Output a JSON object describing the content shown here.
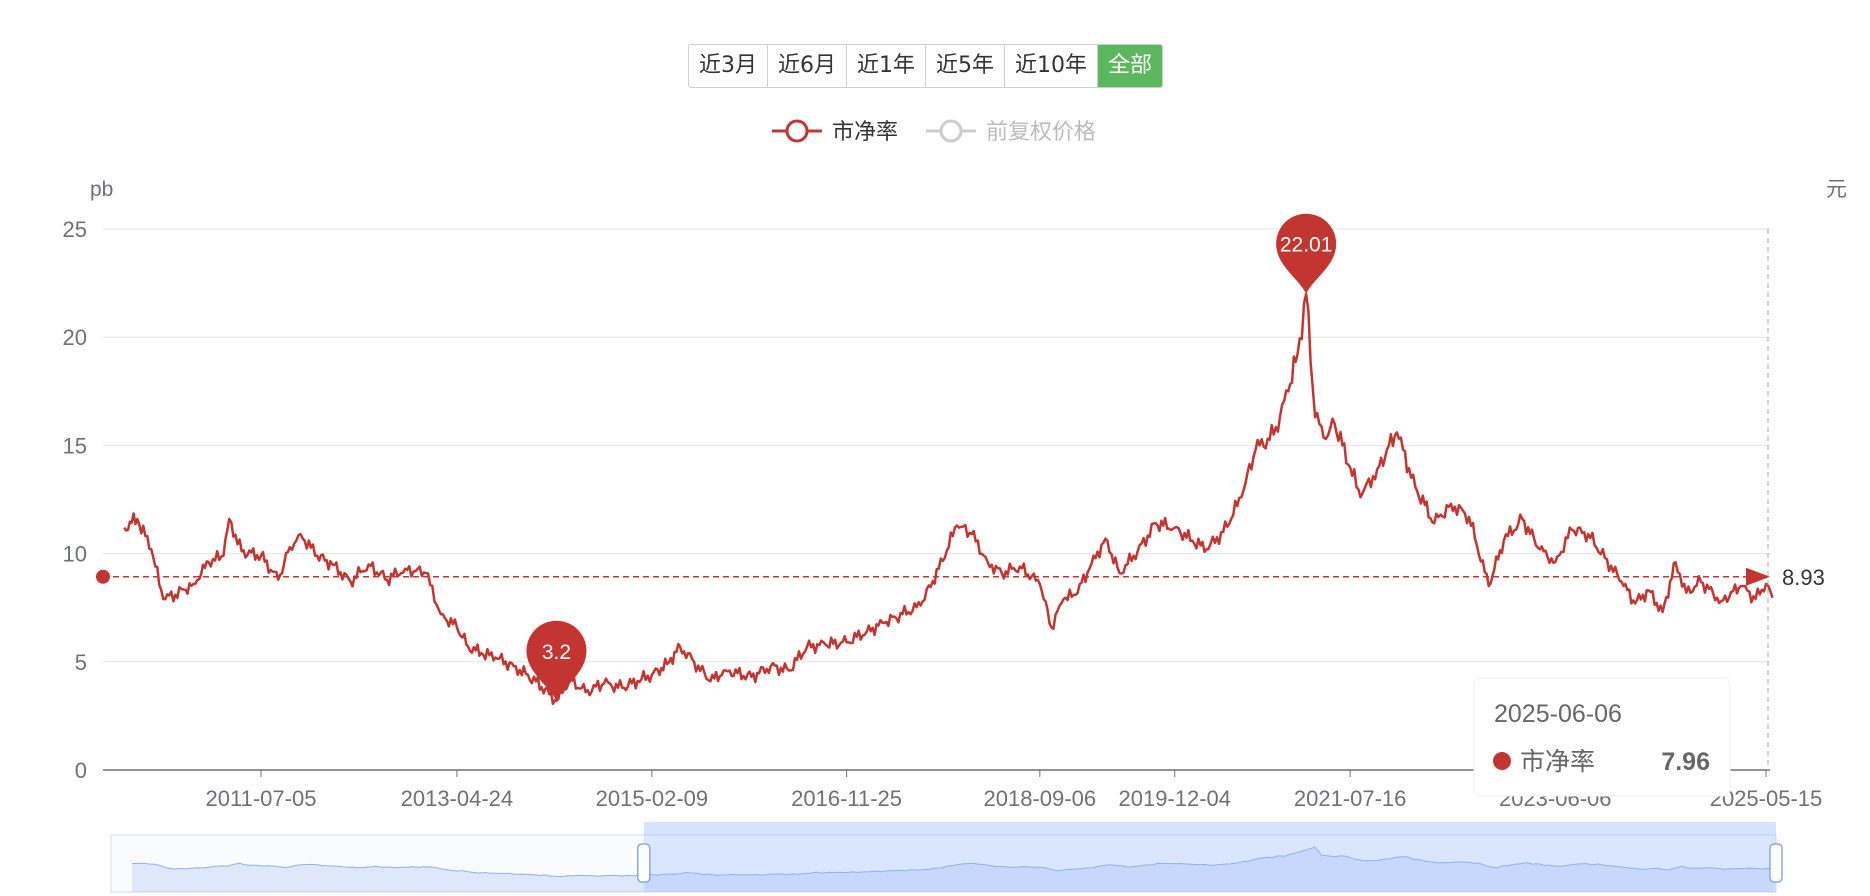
{
  "range_buttons": [
    {
      "label": "近3月",
      "active": false
    },
    {
      "label": "近6月",
      "active": false
    },
    {
      "label": "近1年",
      "active": false
    },
    {
      "label": "近5年",
      "active": false
    },
    {
      "label": "近10年",
      "active": false
    },
    {
      "label": "全部",
      "active": true
    }
  ],
  "colors": {
    "pb": "#c23531",
    "price": "#cccccc",
    "accent": "#5cb85c",
    "grid": "#e0e3ea",
    "axis": "#6e7079",
    "zoom": "#8fb0f7"
  },
  "chart_data": {
    "type": "line",
    "left_unit": "pb",
    "right_unit": "元",
    "ylim": [
      0,
      25
    ],
    "yticks": [
      0,
      5,
      10,
      15,
      20,
      25
    ],
    "xticks": [
      "2011-07-05",
      "2013-04-24",
      "2015-02-09",
      "2016-11-25",
      "2018-09-06",
      "2019-12-04",
      "2021-07-16",
      "2023-06-06",
      "2025-05-15"
    ],
    "legend": [
      {
        "name": "市净率",
        "active": true
      },
      {
        "name": "前复权价格",
        "active": false
      }
    ],
    "series": [
      {
        "name": "市净率",
        "points": [
          [
            "2010-04-01",
            11.2
          ],
          [
            "2010-05-15",
            11.6
          ],
          [
            "2010-07-01",
            10.2
          ],
          [
            "2010-08-10",
            7.9
          ],
          [
            "2010-09-20",
            8.1
          ],
          [
            "2010-11-20",
            8.6
          ],
          [
            "2011-01-10",
            9.6
          ],
          [
            "2011-03-01",
            9.9
          ],
          [
            "2011-03-20",
            11.6
          ],
          [
            "2011-05-01",
            10.1
          ],
          [
            "2011-07-05",
            9.9
          ],
          [
            "2011-09-01",
            8.8
          ],
          [
            "2011-10-10",
            10.3
          ],
          [
            "2011-11-15",
            10.9
          ],
          [
            "2012-01-10",
            9.9
          ],
          [
            "2012-03-01",
            9.5
          ],
          [
            "2012-05-01",
            8.7
          ],
          [
            "2012-07-01",
            9.5
          ],
          [
            "2012-09-01",
            8.8
          ],
          [
            "2012-11-01",
            9.3
          ],
          [
            "2013-01-10",
            9.1
          ],
          [
            "2013-03-01",
            7.2
          ],
          [
            "2013-04-24",
            6.6
          ],
          [
            "2013-06-01",
            5.7
          ],
          [
            "2013-07-15",
            5.4
          ],
          [
            "2013-09-01",
            5.2
          ],
          [
            "2013-11-01",
            4.8
          ],
          [
            "2014-01-15",
            4.1
          ],
          [
            "2014-03-01",
            3.5
          ],
          [
            "2014-03-25",
            3.2
          ],
          [
            "2014-05-10",
            4.2
          ],
          [
            "2014-07-01",
            3.6
          ],
          [
            "2014-09-01",
            4.0
          ],
          [
            "2014-11-01",
            3.8
          ],
          [
            "2015-01-05",
            4.2
          ],
          [
            "2015-02-09",
            4.4
          ],
          [
            "2015-04-01",
            4.9
          ],
          [
            "2015-05-15",
            5.7
          ],
          [
            "2015-07-01",
            5.0
          ],
          [
            "2015-08-25",
            4.1
          ],
          [
            "2015-10-15",
            4.6
          ],
          [
            "2016-01-10",
            4.3
          ],
          [
            "2016-03-15",
            4.8
          ],
          [
            "2016-05-15",
            4.6
          ],
          [
            "2016-07-15",
            5.7
          ],
          [
            "2016-09-15",
            5.8
          ],
          [
            "2016-11-25",
            5.9
          ],
          [
            "2017-02-01",
            6.4
          ],
          [
            "2017-04-01",
            6.8
          ],
          [
            "2017-06-01",
            7.2
          ],
          [
            "2017-08-01",
            7.6
          ],
          [
            "2017-10-01",
            9.3
          ],
          [
            "2017-12-01",
            11.3
          ],
          [
            "2018-01-20",
            10.9
          ],
          [
            "2018-03-15",
            9.6
          ],
          [
            "2018-05-01",
            9.1
          ],
          [
            "2018-07-01",
            9.4
          ],
          [
            "2018-09-06",
            8.6
          ],
          [
            "2018-10-15",
            6.6
          ],
          [
            "2018-11-25",
            7.9
          ],
          [
            "2019-01-05",
            8.1
          ],
          [
            "2019-02-20",
            9.3
          ],
          [
            "2019-04-15",
            10.7
          ],
          [
            "2019-06-01",
            9.1
          ],
          [
            "2019-08-01",
            10.1
          ],
          [
            "2019-10-01",
            11.4
          ],
          [
            "2019-12-04",
            11.2
          ],
          [
            "2020-02-01",
            10.6
          ],
          [
            "2020-03-20",
            10.2
          ],
          [
            "2020-05-15",
            11.0
          ],
          [
            "2020-07-15",
            12.6
          ],
          [
            "2020-09-01",
            14.8
          ],
          [
            "2020-11-01",
            15.5
          ],
          [
            "2020-12-20",
            17.5
          ],
          [
            "2021-01-20",
            19.2
          ],
          [
            "2021-02-18",
            22.0
          ],
          [
            "2021-03-20",
            16.3
          ],
          [
            "2021-04-25",
            15.3
          ],
          [
            "2021-05-25",
            16.0
          ],
          [
            "2021-07-16",
            14.0
          ],
          [
            "2021-08-20",
            12.6
          ],
          [
            "2021-10-15",
            13.9
          ],
          [
            "2021-12-20",
            15.6
          ],
          [
            "2022-02-20",
            13.1
          ],
          [
            "2022-04-25",
            11.4
          ],
          [
            "2022-06-20",
            12.3
          ],
          [
            "2022-08-20",
            11.7
          ],
          [
            "2022-10-25",
            8.5
          ],
          [
            "2022-12-15",
            10.6
          ],
          [
            "2023-02-15",
            11.6
          ],
          [
            "2023-04-15",
            10.2
          ],
          [
            "2023-06-06",
            9.6
          ],
          [
            "2023-08-01",
            11.1
          ],
          [
            "2023-09-25",
            10.9
          ],
          [
            "2023-11-20",
            9.8
          ],
          [
            "2024-01-15",
            8.7
          ],
          [
            "2024-03-01",
            7.7
          ],
          [
            "2024-04-15",
            8.3
          ],
          [
            "2024-06-01",
            7.3
          ],
          [
            "2024-07-15",
            9.6
          ],
          [
            "2024-08-20",
            8.2
          ],
          [
            "2024-10-08",
            8.7
          ],
          [
            "2024-12-15",
            7.8
          ],
          [
            "2025-02-20",
            8.5
          ],
          [
            "2025-04-10",
            7.9
          ],
          [
            "2025-05-15",
            8.6
          ],
          [
            "2025-06-06",
            7.96
          ]
        ]
      }
    ],
    "reference_line": {
      "value": 8.93,
      "label": "8.93"
    },
    "markpoints": [
      {
        "label": "22.01",
        "date": "2021-02-18",
        "value": 22.01
      },
      {
        "label": "3.2",
        "date": "2014-03-25",
        "value": 3.2
      }
    ],
    "tooltip": {
      "date": "2025-06-06",
      "series": "市净率",
      "value": "7.96"
    },
    "datazoom_range": [
      0.32,
      1.0
    ]
  }
}
